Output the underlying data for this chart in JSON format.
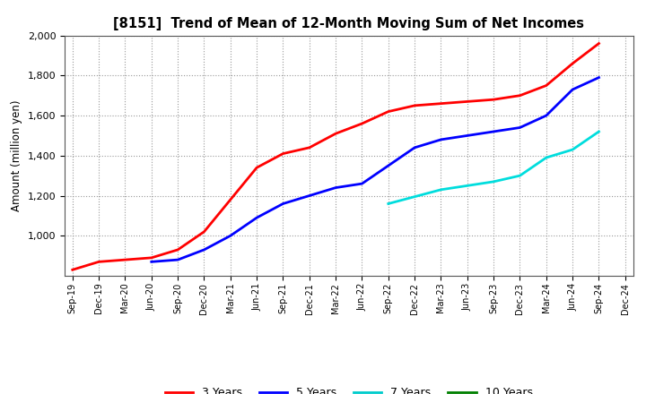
{
  "title": "[8151]  Trend of Mean of 12-Month Moving Sum of Net Incomes",
  "ylabel": "Amount (million yen)",
  "ylim": [
    800,
    2000
  ],
  "yticks": [
    1000,
    1200,
    1400,
    1600,
    1800,
    2000
  ],
  "background_color": "#ffffff",
  "grid_color": "#bbbbbb",
  "x_labels": [
    "Sep-19",
    "Dec-19",
    "Mar-20",
    "Jun-20",
    "Sep-20",
    "Dec-20",
    "Mar-21",
    "Jun-21",
    "Sep-21",
    "Dec-21",
    "Mar-22",
    "Jun-22",
    "Sep-22",
    "Dec-22",
    "Mar-23",
    "Jun-23",
    "Sep-23",
    "Dec-23",
    "Mar-24",
    "Jun-24",
    "Sep-24",
    "Dec-24"
  ],
  "series": {
    "3 Years": {
      "color": "#ff0000",
      "data_indices": [
        0,
        1,
        2,
        3,
        4,
        5,
        6,
        7,
        8,
        9,
        10,
        11,
        12,
        13,
        14,
        15,
        16,
        17,
        18,
        19,
        20
      ],
      "values": [
        830,
        870,
        880,
        890,
        930,
        1020,
        1180,
        1340,
        1410,
        1440,
        1510,
        1560,
        1620,
        1650,
        1660,
        1670,
        1680,
        1700,
        1750,
        1860,
        1960
      ]
    },
    "5 Years": {
      "color": "#0000ff",
      "data_indices": [
        3,
        4,
        5,
        6,
        7,
        8,
        9,
        10,
        11,
        12,
        13,
        14,
        15,
        16,
        17,
        18,
        19,
        20
      ],
      "values": [
        870,
        880,
        930,
        1000,
        1090,
        1160,
        1200,
        1240,
        1260,
        1350,
        1440,
        1480,
        1500,
        1520,
        1540,
        1600,
        1730,
        1790
      ]
    },
    "7 Years": {
      "color": "#00dddd",
      "data_indices": [
        12,
        13,
        14,
        15,
        16,
        17,
        18,
        19,
        20
      ],
      "values": [
        1160,
        1195,
        1230,
        1250,
        1270,
        1300,
        1390,
        1430,
        1520
      ]
    },
    "10 Years": {
      "color": "#008000",
      "data_indices": [],
      "values": []
    }
  },
  "legend_labels": [
    "3 Years",
    "5 Years",
    "7 Years",
    "10 Years"
  ],
  "legend_colors": [
    "#ff0000",
    "#0000ff",
    "#00cccc",
    "#008000"
  ]
}
